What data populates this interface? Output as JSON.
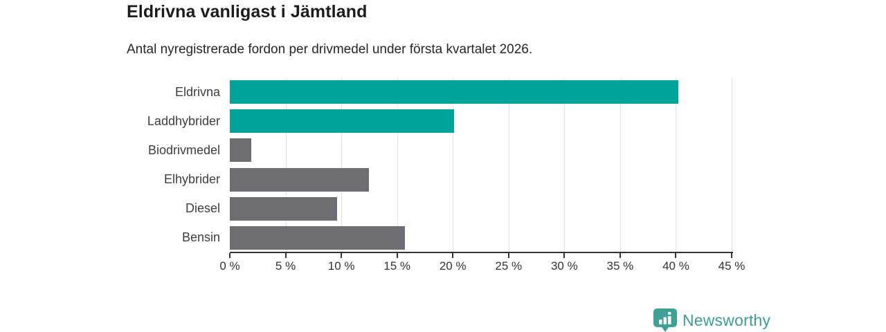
{
  "header": {
    "title": "Eldrivna vanligast i Jämtland",
    "subtitle": "Antal nyregistrerade fordon per drivmedel under första kvartalet 2026."
  },
  "footer": {
    "brand": "Newsworthy"
  },
  "colors": {
    "highlight_bar": "#00a399",
    "default_bar": "#6e6e72",
    "axis": "#333333",
    "gridline": "#e3e3e3",
    "logo": "#3da295",
    "brand_text": "#3b9e93"
  },
  "chart_data": {
    "type": "bar",
    "orientation": "horizontal",
    "title": "Eldrivna vanligast i Jämtland",
    "subtitle": "Antal nyregistrerade fordon per drivmedel under första kvartalet 2026.",
    "categories": [
      "Eldrivna",
      "Laddhybrider",
      "Biodrivmedel",
      "Elhybrider",
      "Diesel",
      "Bensin"
    ],
    "values": [
      40.2,
      20.1,
      1.9,
      12.5,
      9.6,
      15.7
    ],
    "bar_colors": [
      "#00a399",
      "#00a399",
      "#6e6e72",
      "#6e6e72",
      "#6e6e72",
      "#6e6e72"
    ],
    "unit": "%",
    "xlim": [
      0,
      45
    ],
    "x_ticks": [
      0,
      5,
      10,
      15,
      20,
      25,
      30,
      35,
      40,
      45
    ],
    "x_tick_labels": [
      "0 %",
      "5 %",
      "10 %",
      "15 %",
      "20 %",
      "25 %",
      "30 %",
      "35 %",
      "40 %",
      "45 %"
    ],
    "grid": true,
    "legend": false
  }
}
